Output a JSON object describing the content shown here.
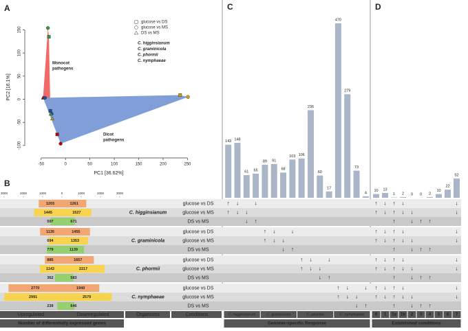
{
  "chart_data": [
    {
      "type": "scatter",
      "panel": "A",
      "xlabel": "PC1 [36.62%]",
      "ylabel": "PC2 [16.1%]",
      "xlim": [
        -75,
        265
      ],
      "ylim": [
        -115,
        170
      ],
      "xticks": [
        -50,
        0,
        50,
        100,
        150,
        200,
        250
      ],
      "yticks": [
        -100,
        -50,
        0,
        50,
        100,
        150
      ],
      "shape_legend": {
        "labels": [
          "glucose vs DS",
          "glucose vs MS",
          "DS vs MS"
        ],
        "markers": [
          "square",
          "circle",
          "triangle"
        ]
      },
      "series": [
        {
          "name": "C. higginsianum",
          "color": "#c00000",
          "x": [
            -17,
            -10,
            -46
          ],
          "y": [
            -76,
            -96,
            3
          ]
        },
        {
          "name": "C. graminicola",
          "color": "#1f4e9a",
          "x": [
            -31,
            -42,
            -28
          ],
          "y": [
            -25,
            3,
            -30
          ]
        },
        {
          "name": "C. phormii",
          "color": "#3a9a3a",
          "x": [
            -34,
            -36,
            -30
          ],
          "y": [
            135,
            154,
            -32
          ]
        },
        {
          "name": "C. nymphaeae",
          "color": "#d4a017",
          "x": [
            235,
            251,
            -27
          ],
          "y": [
            9,
            5,
            -42
          ]
        }
      ],
      "annotations": [
        {
          "lines": [
            "Monocot",
            "pathogens"
          ],
          "color": "#8b3a2a"
        },
        {
          "lines": [
            "Dicot",
            "pathogens"
          ],
          "color": "#2f4f8f"
        }
      ]
    },
    {
      "type": "butterfly",
      "panel": "B",
      "xlabel": "Number of differentially expressed genes",
      "xlim": [
        -3000,
        3000
      ],
      "xticks": [
        {
          "value": -3000,
          "label": "3000"
        },
        {
          "value": -2000,
          "label": "2000"
        },
        {
          "value": -1000,
          "label": "1000"
        },
        0,
        1000,
        2000,
        3000
      ],
      "condition_colors": [
        "#f2a672",
        "#f8d34e",
        "#95cf6e"
      ],
      "series": [
        {
          "name": "Upregulated",
          "values": [
            1203,
            1445,
            597,
            1135,
            694,
            779,
            885,
            1143,
            362,
            2770,
            2991,
            239
          ]
        },
        {
          "name": "Downregulated",
          "values": [
            1261,
            1527,
            671,
            1455,
            1353,
            1139,
            1657,
            2217,
            583,
            1940,
            2579,
            646
          ]
        }
      ]
    },
    {
      "type": "bar",
      "panel": "C",
      "xlabel": "Genome-specific Response",
      "color": "#aab6c8",
      "groups": [
        "C. higginsianum",
        "C. graminicola",
        "C. phormii",
        "C. nymphaeae"
      ],
      "values": [
        143,
        148,
        61,
        65,
        89,
        91,
        68,
        103,
        106,
        236,
        60,
        17,
        470,
        279,
        73,
        4
      ]
    },
    {
      "type": "bar",
      "panel": "D",
      "xlabel": "Established conditions",
      "color": "#aab6c8",
      "categories": [
        "0",
        "1",
        "1a",
        "1b",
        "2",
        "3",
        "4",
        "5",
        "6",
        "7"
      ],
      "values": [
        10,
        13,
        1,
        2,
        0,
        0,
        2,
        10,
        22,
        52
      ]
    }
  ],
  "table": {
    "organisms": [
      "C. higginsianum",
      "C. graminicola",
      "C. phormii",
      "C. nymphaeae"
    ],
    "conditions": [
      "glucose vs DS",
      "glucose vs MS",
      "DS vs MS"
    ],
    "headers": {
      "organisms": "Organisms",
      "conditions": "Conditions"
    },
    "genome_specific": [
      [
        "↑",
        "↓",
        null,
        "↓",
        null,
        null,
        null,
        null,
        null,
        null,
        null,
        null,
        null,
        null,
        null,
        null
      ],
      [
        "↑",
        "↓",
        "↓",
        null,
        null,
        null,
        null,
        null,
        null,
        null,
        null,
        null,
        null,
        null,
        null,
        null
      ],
      [
        null,
        null,
        "↓",
        "↑",
        null,
        null,
        null,
        null,
        null,
        null,
        null,
        null,
        null,
        null,
        null,
        null
      ],
      [
        null,
        null,
        null,
        null,
        "↑",
        "↓",
        null,
        "↓",
        null,
        null,
        null,
        null,
        null,
        null,
        null,
        null
      ],
      [
        null,
        null,
        null,
        null,
        "↑",
        "↓",
        "↓",
        null,
        null,
        null,
        null,
        null,
        null,
        null,
        null,
        null
      ],
      [
        null,
        null,
        null,
        null,
        null,
        null,
        "↓",
        "↑",
        null,
        null,
        null,
        null,
        null,
        null,
        null,
        null
      ],
      [
        null,
        null,
        null,
        null,
        null,
        null,
        null,
        null,
        "↑",
        "↓",
        null,
        "↓",
        null,
        null,
        null,
        null
      ],
      [
        null,
        null,
        null,
        null,
        null,
        null,
        null,
        null,
        "↑",
        "↓",
        "↓",
        null,
        null,
        null,
        null,
        null
      ],
      [
        null,
        null,
        null,
        null,
        null,
        null,
        null,
        null,
        null,
        null,
        "↓",
        "↑",
        null,
        null,
        null,
        null
      ],
      [
        null,
        null,
        null,
        null,
        null,
        null,
        null,
        null,
        null,
        null,
        null,
        null,
        "↑",
        "↓",
        null,
        "↓"
      ],
      [
        null,
        null,
        null,
        null,
        null,
        null,
        null,
        null,
        null,
        null,
        null,
        null,
        "↑",
        "↓",
        "↓",
        null
      ],
      [
        null,
        null,
        null,
        null,
        null,
        null,
        null,
        null,
        null,
        null,
        null,
        null,
        null,
        null,
        "↓",
        "↑"
      ]
    ],
    "established": [
      [
        "↑",
        "↓",
        "↑",
        "↓",
        null,
        null,
        null,
        null,
        null,
        "↓"
      ],
      [
        "↑",
        "↓",
        "↑",
        "↓",
        "↓",
        null,
        null,
        null,
        null,
        "↓"
      ],
      [
        null,
        null,
        "↑",
        null,
        "↓",
        "↑",
        "↑",
        null,
        null,
        null
      ],
      [
        "↑",
        "↓",
        "↑",
        "↓",
        null,
        null,
        null,
        null,
        null,
        "↓"
      ],
      [
        "↑",
        "↓",
        "↑",
        "↓",
        "↓",
        null,
        null,
        null,
        null,
        "↓"
      ],
      [
        null,
        null,
        "↑",
        null,
        "↓",
        "↑",
        "↑",
        null,
        null,
        null
      ],
      [
        "↑",
        "↓",
        "↑",
        "↓",
        null,
        null,
        null,
        null,
        null,
        "↓"
      ],
      [
        "↑",
        "↓",
        "↑",
        "↓",
        "↓",
        null,
        null,
        null,
        null,
        "↓"
      ],
      [
        null,
        null,
        "↑",
        null,
        "↓",
        "↑",
        "↑",
        null,
        null,
        null
      ],
      [
        "↑",
        "↓",
        "↑",
        "↓",
        null,
        null,
        null,
        null,
        null,
        "↓"
      ],
      [
        "↑",
        "↓",
        "↑",
        "↓",
        "↓",
        null,
        null,
        null,
        null,
        "↓"
      ],
      [
        null,
        null,
        "↑",
        null,
        "↓",
        "↑",
        "↑",
        null,
        null,
        null
      ]
    ]
  }
}
